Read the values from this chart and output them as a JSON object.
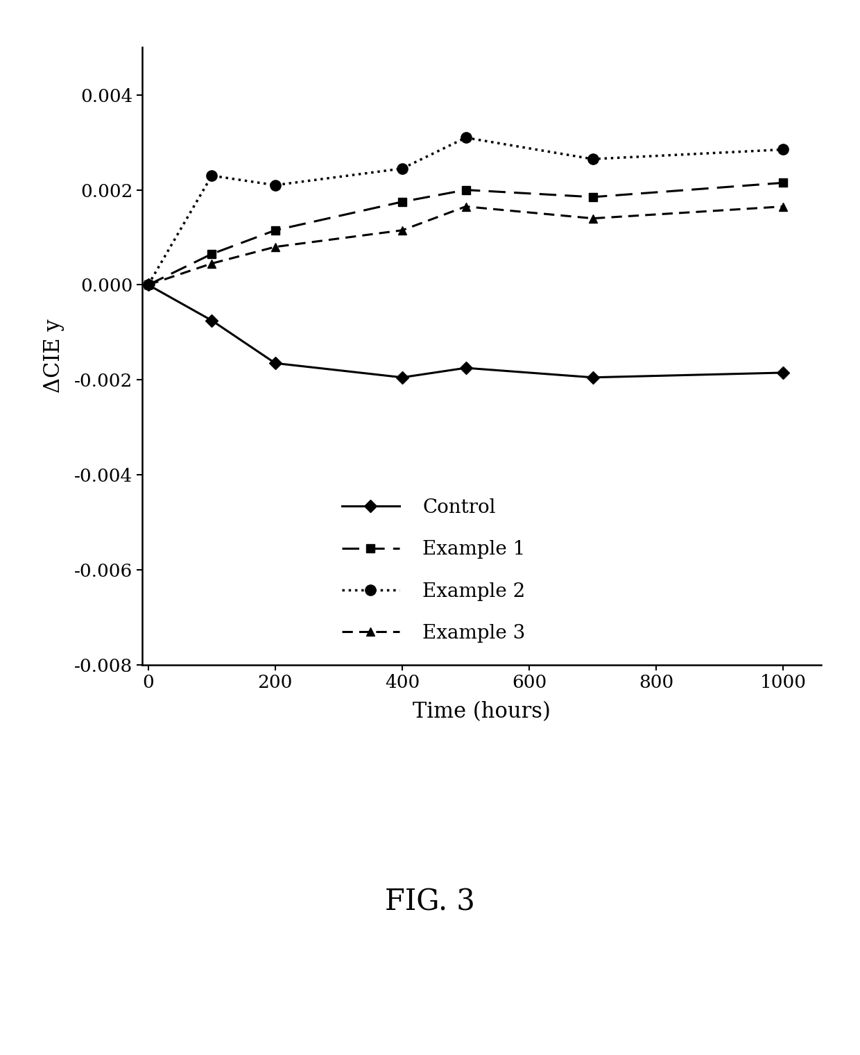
{
  "x": [
    0,
    100,
    200,
    400,
    500,
    700,
    1000
  ],
  "control": [
    0.0,
    -0.00075,
    -0.00165,
    -0.00195,
    -0.00175,
    -0.00195,
    -0.00185
  ],
  "example1": [
    0.0,
    0.00065,
    0.00115,
    0.00175,
    0.002,
    0.00185,
    0.00215
  ],
  "example2": [
    0.0,
    0.0023,
    0.0021,
    0.00245,
    0.0031,
    0.00265,
    0.00285
  ],
  "example3": [
    0.0,
    0.00045,
    0.0008,
    0.00115,
    0.00165,
    0.0014,
    0.00165
  ],
  "xlabel": "Time (hours)",
  "ylabel": "ΔCIE y",
  "ylim": [
    -0.008,
    0.005
  ],
  "yticks": [
    -0.008,
    -0.006,
    -0.004,
    -0.002,
    0.0,
    0.002,
    0.004
  ],
  "xlim": [
    -10,
    1060
  ],
  "xticks": [
    0,
    200,
    400,
    600,
    800,
    1000
  ],
  "legend_labels": [
    "Control",
    "Example 1",
    "Example 2",
    "Example 3"
  ],
  "fig_label": "FIG. 3",
  "background_color": "#ffffff",
  "line_color": "#000000"
}
